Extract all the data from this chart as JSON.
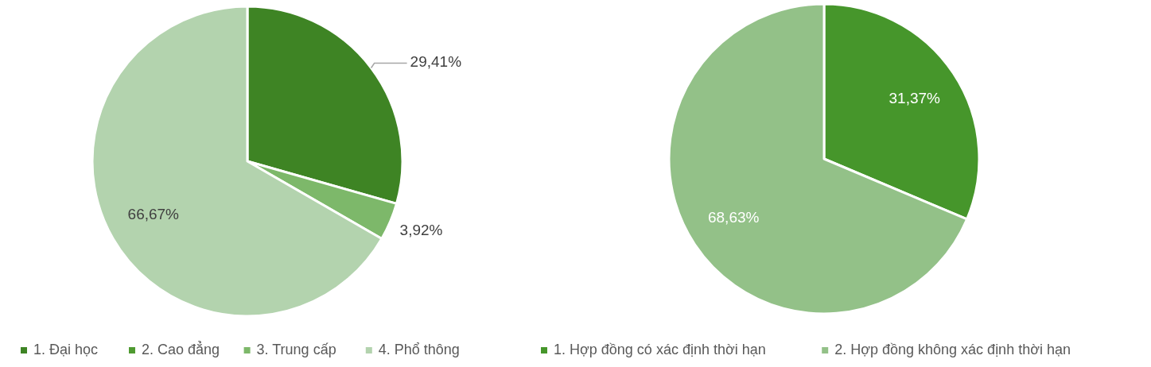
{
  "chart_data": [
    {
      "type": "pie",
      "categories": [
        "1. Đại học",
        "2. Cao đẳng",
        "3. Trung cấp",
        "4. Phổ thông"
      ],
      "values": [
        29.41,
        0,
        3.92,
        66.67
      ],
      "colors": [
        "#3e8424",
        "#4f9a31",
        "#7db86a",
        "#b3d3ae"
      ],
      "value_labels": [
        "29,41%",
        null,
        "3,92%",
        "66,67%"
      ],
      "legend": "bottom"
    },
    {
      "type": "pie",
      "categories": [
        "1. Hợp đồng có xác định thời hạn",
        "2. Hợp đồng không xác định thời hạn"
      ],
      "values": [
        31.37,
        68.63
      ],
      "colors": [
        "#46962b",
        "#93c188"
      ],
      "value_labels": [
        "31,37%",
        "68,63%"
      ],
      "legend": "bottom"
    }
  ]
}
